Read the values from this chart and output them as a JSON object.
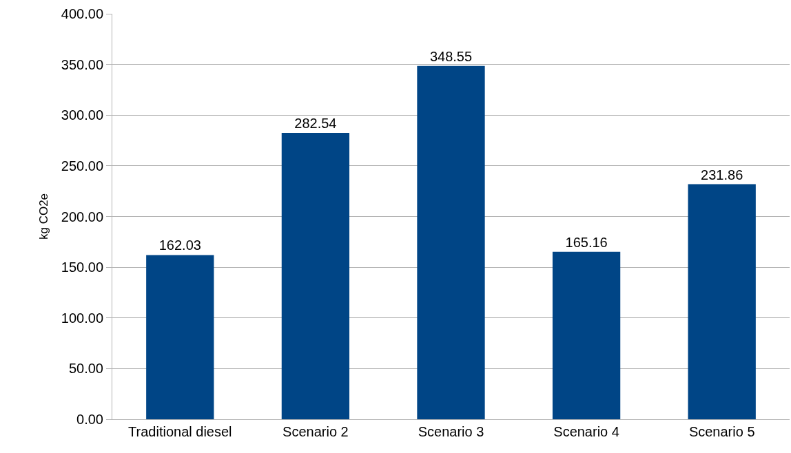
{
  "chart_data": {
    "type": "bar",
    "ylabel": "kg CO2e",
    "categories": [
      "Traditional diesel",
      "Scenario 2",
      "Scenario 3",
      "Scenario 4",
      "Scenario 5"
    ],
    "values": [
      162.03,
      282.54,
      348.55,
      165.16,
      231.86
    ],
    "color": "#004586",
    "ylim": [
      0,
      400
    ],
    "yticks": [
      {
        "value": 0,
        "label": "0.00"
      },
      {
        "value": 50,
        "label": "50.00"
      },
      {
        "value": 100,
        "label": "100.00"
      },
      {
        "value": 150,
        "label": "150.00"
      },
      {
        "value": 200,
        "label": "200.00"
      },
      {
        "value": 250,
        "label": "250.00"
      },
      {
        "value": 300,
        "label": "300.00"
      },
      {
        "value": 350,
        "label": "350.00"
      },
      {
        "value": 400,
        "label": "400.00"
      }
    ],
    "grid": "y",
    "data_labels": true,
    "legend": false
  }
}
